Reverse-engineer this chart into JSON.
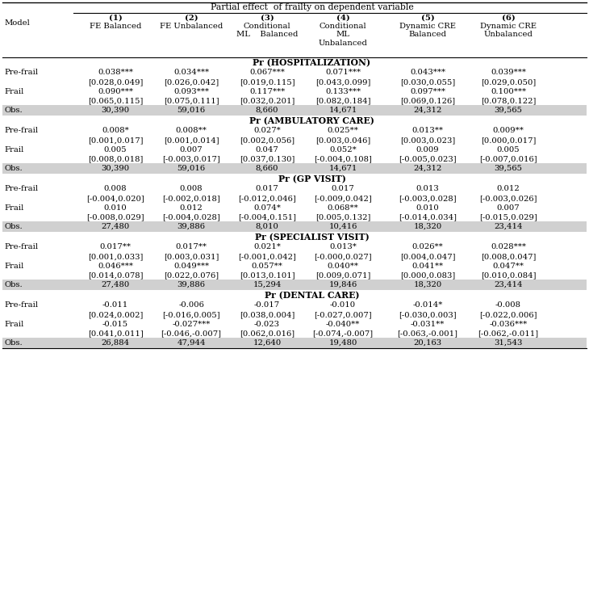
{
  "title": "Partial effect  of frailty on dependent variable",
  "font_size": 7.2,
  "title_font_size": 7.8,
  "section_title_font_size": 7.8,
  "sections": [
    {
      "title": "Pr (HOSPITALIZATION)",
      "rows": [
        [
          "Pre-frail",
          "0.038***",
          "0.034***",
          "0.067***",
          "0.071***",
          "0.043***",
          "0.039***"
        ],
        [
          "",
          "[0.028,0.049]",
          "[0.026,0.042]",
          "[0.019,0.115]",
          "[0.043,0.099]",
          "[0.030,0.055]",
          "[0.029,0.050]"
        ],
        [
          "Frail",
          "0.090***",
          "0.093***",
          "0.117***",
          "0.133***",
          "0.097***",
          "0.100***"
        ],
        [
          "",
          "[0.065,0.115]",
          "[0.075,0.111]",
          "[0.032,0.201]",
          "[0.082,0.184]",
          "[0.069,0.126]",
          "[0.078,0.122]"
        ],
        [
          "Obs.",
          "30,390",
          "59,016",
          "8,660",
          "14,671",
          "24,312",
          "39,565"
        ]
      ]
    },
    {
      "title": "Pr (AMBULATORY CARE)",
      "rows": [
        [
          "Pre-frail",
          "0.008*",
          "0.008**",
          "0.027*",
          "0.025**",
          "0.013**",
          "0.009**"
        ],
        [
          "",
          "[0.001,0.017]",
          "[0.001,0.014]",
          "[0.002,0.056]",
          "[0.003,0.046]",
          "[0.003,0.023]",
          "[0.000,0.017]"
        ],
        [
          "Frail",
          "0.005",
          "0.007",
          "0.047",
          "0.052*",
          "0.009",
          "0.005"
        ],
        [
          "",
          "[0.008,0.018]",
          "[-0.003,0.017]",
          "[0.037,0.130]",
          "[-0.004,0.108]",
          "[-0.005,0.023]",
          "[-0.007,0.016]"
        ],
        [
          "Obs.",
          "30,390",
          "59,016",
          "8,660",
          "14,671",
          "24,312",
          "39,565"
        ]
      ]
    },
    {
      "title": "Pr (GP VISIT)",
      "rows": [
        [
          "Pre-frail",
          "0.008",
          "0.008",
          "0.017",
          "0.017",
          "0.013",
          "0.012"
        ],
        [
          "",
          "[-0.004,0.020]",
          "[-0.002,0.018]",
          "[-0.012,0.046]",
          "[-0.009,0.042]",
          "[-0.003,0.028]",
          "[-0.003,0.026]"
        ],
        [
          "Frail",
          "0.010",
          "0.012",
          "0.074*",
          "0.068**",
          "0.010",
          "0.007"
        ],
        [
          "",
          "[-0.008,0.029]",
          "[-0.004,0.028]",
          "[-0.004,0.151]",
          "[0.005,0.132]",
          "[-0.014,0.034]",
          "[-0.015,0.029]"
        ],
        [
          "Obs.",
          "27,480",
          "39,886",
          "8,010",
          "10,416",
          "18,320",
          "23,414"
        ]
      ]
    },
    {
      "title": "Pr (SPECIALIST VISIT)",
      "rows": [
        [
          "Pre-frail",
          "0.017**",
          "0.017**",
          "0.021*",
          "0.013*",
          "0.026**",
          "0.028***"
        ],
        [
          "",
          "[0.001,0.033]",
          "[0.003,0.031]",
          "[-0.001,0.042]",
          "[-0.000,0.027]",
          "[0.004,0.047]",
          "[0.008,0.047]"
        ],
        [
          "Frail",
          "0.046***",
          "0.049***",
          "0.057**",
          "0.040**",
          "0.041**",
          "0.047**"
        ],
        [
          "",
          "[0.014,0.078]",
          "[0.022,0.076]",
          "[0.013,0.101]",
          "[0.009,0.071]",
          "[0.000,0.083]",
          "[0.010,0.084]"
        ],
        [
          "Obs.",
          "27,480",
          "39,886",
          "15,294",
          "19,846",
          "18,320",
          "23,414"
        ]
      ]
    },
    {
      "title": "Pr (DENTAL CARE)",
      "rows": [
        [
          "Pre-frail",
          "-0.011",
          "-0.006",
          "-0.017",
          "-0.010",
          "-0.014*",
          "-0.008"
        ],
        [
          "",
          "[0.024,0.002]",
          "[-0.016,0.005]",
          "[0.038,0.004]",
          "[-0.027,0.007]",
          "[-0.030,0.003]",
          "[-0.022,0.006]"
        ],
        [
          "Frail",
          "-0.015",
          "-0.027***",
          "-0.023",
          "-0.040**",
          "-0.031**",
          "-0.036***"
        ],
        [
          "",
          "[0.041,0.011]",
          "[-0.046,-0.007]",
          "[0.062,0.016]",
          "[-0.074,-0.007]",
          "[-0.063,-0.001]",
          "[-0.062,-0.011]"
        ],
        [
          "Obs.",
          "26,884",
          "47,944",
          "12,640",
          "19,480",
          "20,163",
          "31,543"
        ]
      ]
    }
  ],
  "col_headers_line1": [
    "(1)",
    "(2)",
    "(3)",
    "(4)",
    "(5)",
    "(6)"
  ],
  "col_headers_line2": [
    "FE Balanced",
    "FE Unbalanced",
    "Conditional\nML    Balanced",
    "Conditional\nML\nUnbalanced",
    "Dynamic CRE\nBalanced",
    "Dynamic CRE\nUnbalanced"
  ],
  "obs_bg": "#d0d0d0",
  "lw": 0.8
}
